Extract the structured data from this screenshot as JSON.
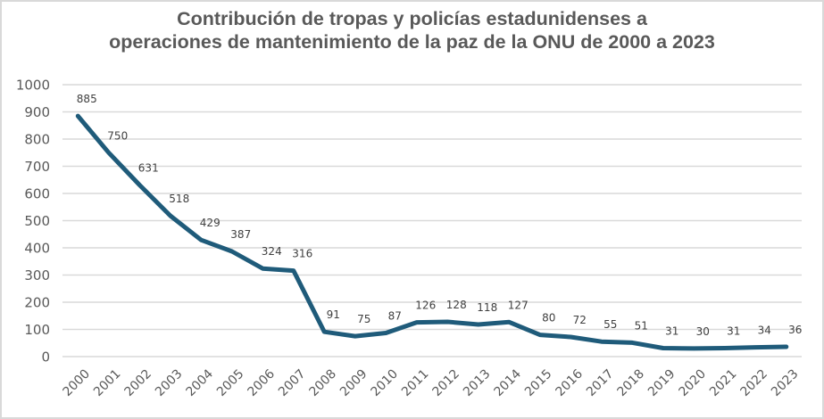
{
  "chart_data": {
    "type": "line",
    "title_line1": "Contribución de tropas y  policías estadunidenses a",
    "title_line2": "operaciones de mantenimiento de la paz de la ONU de 2000 a 2023",
    "xlabel": "",
    "ylabel": "",
    "ylim": [
      0,
      1000
    ],
    "yticks": [
      0,
      100,
      200,
      300,
      400,
      500,
      600,
      700,
      800,
      900,
      1000
    ],
    "grid": true,
    "legend": "none",
    "line_color": "#1F5B7A",
    "categories": [
      "2000",
      "2001",
      "2002",
      "2003",
      "2004",
      "2005",
      "2006",
      "2007",
      "2008",
      "2009",
      "2010",
      "2011",
      "2012",
      "2013",
      "2014",
      "2015",
      "2016",
      "2017",
      "2018",
      "2019",
      "2020",
      "2021",
      "2022",
      "2023"
    ],
    "series": [
      {
        "name": "Contribución de tropas y policías",
        "values": [
          885,
          750,
          631,
          518,
          429,
          387,
          324,
          316,
          91,
          75,
          87,
          126,
          128,
          118,
          127,
          80,
          72,
          55,
          51,
          31,
          30,
          31,
          34,
          36
        ]
      }
    ]
  }
}
